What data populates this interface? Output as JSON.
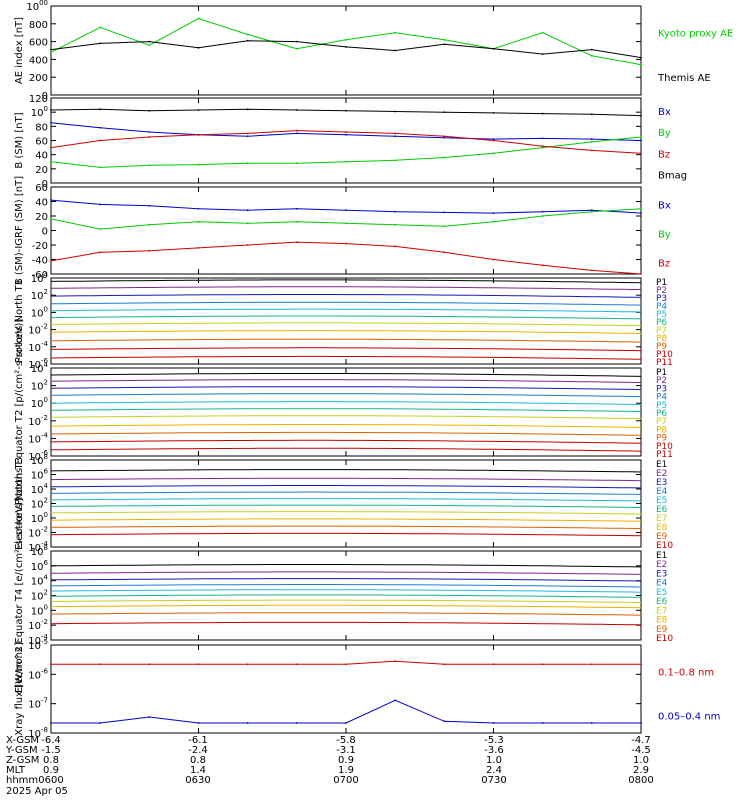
{
  "footer": {
    "labels": [
      "X-GSM",
      "Y-GSM",
      "Z-GSM",
      "MLT",
      "hhmm",
      "2025 Apr 05"
    ],
    "columns": [
      [
        "-6.4",
        "-1.5",
        "0.8",
        "0.9",
        "0600"
      ],
      [
        "-6.1",
        "-2.4",
        "0.8",
        "1.4",
        "0630"
      ],
      [
        "-5.8",
        "-3.1",
        "0.9",
        "1.9",
        "0700"
      ],
      [
        "-5.3",
        "-3.6",
        "1.0",
        "2.4",
        "0730"
      ],
      [
        "-4.7",
        "-4.5",
        "1.0",
        "2.9",
        "0800"
      ]
    ]
  },
  "chart_data": [
    {
      "type": "line",
      "ylabel": "AE index [nT]",
      "ylim": [
        0,
        1000
      ],
      "yticks": [
        "0",
        "200",
        "400",
        "600",
        "800",
        "1000"
      ],
      "x": [
        "0600",
        "0610",
        "0620",
        "0630",
        "0640",
        "0650",
        "0700",
        "0710",
        "0720",
        "0730",
        "0740",
        "0750",
        "0800"
      ],
      "series": [
        {
          "name": "Kyoto proxy AE",
          "color": "#00cc00",
          "values": [
            480,
            760,
            560,
            860,
            680,
            520,
            620,
            700,
            620,
            520,
            700,
            440,
            340
          ]
        },
        {
          "name": "Themis AE",
          "color": "#000000",
          "values": [
            510,
            580,
            600,
            530,
            610,
            600,
            540,
            500,
            570,
            520,
            460,
            510,
            420
          ]
        }
      ]
    },
    {
      "type": "line",
      "ylabel": "B (SM) [nT]",
      "ylim": [
        0,
        120
      ],
      "yticks": [
        "0",
        "20",
        "40",
        "60",
        "80",
        "100",
        "120"
      ],
      "x": [
        "0600",
        "0610",
        "0620",
        "0630",
        "0640",
        "0650",
        "0700",
        "0710",
        "0720",
        "0730",
        "0740",
        "0750",
        "0800"
      ],
      "series": [
        {
          "name": "Bx",
          "color": "#0000cc",
          "values": [
            85,
            78,
            72,
            68,
            66,
            70,
            68,
            66,
            64,
            62,
            63,
            62,
            60
          ]
        },
        {
          "name": "By",
          "color": "#00cc00",
          "values": [
            30,
            22,
            25,
            26,
            28,
            28,
            30,
            32,
            36,
            42,
            50,
            58,
            65
          ]
        },
        {
          "name": "Bz",
          "color": "#cc0000",
          "values": [
            50,
            60,
            65,
            68,
            70,
            74,
            72,
            70,
            66,
            60,
            52,
            46,
            42
          ]
        },
        {
          "name": "Bmag",
          "color": "#000000",
          "values": [
            103,
            104,
            102,
            103,
            104,
            103,
            102,
            101,
            100,
            99,
            98,
            97,
            95
          ]
        }
      ]
    },
    {
      "type": "line",
      "ylabel": "B (SM)-IGRF (SM) [nT]",
      "ylim": [
        -60,
        60
      ],
      "yticks": [
        "-60",
        "-40",
        "-20",
        "0",
        "20",
        "40",
        "60"
      ],
      "x": [
        "0600",
        "0610",
        "0620",
        "0630",
        "0640",
        "0650",
        "0700",
        "0710",
        "0720",
        "0730",
        "0740",
        "0750",
        "0800"
      ],
      "series": [
        {
          "name": "Bx",
          "color": "#0000cc",
          "values": [
            42,
            36,
            34,
            30,
            28,
            30,
            28,
            26,
            25,
            24,
            26,
            28,
            24
          ]
        },
        {
          "name": "By",
          "color": "#00cc00",
          "values": [
            16,
            2,
            8,
            12,
            10,
            12,
            10,
            8,
            6,
            12,
            20,
            26,
            30
          ]
        },
        {
          "name": "Bz",
          "color": "#cc0000",
          "values": [
            -42,
            -30,
            -28,
            -24,
            -20,
            -16,
            -18,
            -22,
            -30,
            -40,
            -48,
            -55,
            -60
          ]
        }
      ]
    },
    {
      "type": "line",
      "ylabel": "Protons North T1",
      "log": true,
      "ylim": [
        1e-06,
        10000
      ],
      "yticks": [
        "10-6",
        "10-4",
        "10-2",
        "100",
        "102",
        "104"
      ],
      "channels": [
        "P1",
        "P2",
        "P3",
        "P4",
        "P5",
        "P6",
        "P7",
        "P8",
        "P9",
        "P10",
        "P11"
      ],
      "levels": [
        3.6,
        2.8,
        1.9,
        1.0,
        0.2,
        -0.6,
        -1.4,
        -2.3,
        -3.3,
        -4.3,
        -5.3
      ],
      "colors": [
        "#000000",
        "#7b2a86",
        "#1a1ab0",
        "#1f7ad0",
        "#22b8d8",
        "#1ab38a",
        "#c8d020",
        "#f0b000",
        "#e06000",
        "#c00000",
        "#c00000"
      ]
    },
    {
      "type": "line",
      "ylabel": "Protons Equator T2 [p/(cm²-s-sr-keV)]",
      "log": true,
      "ylim": [
        1e-06,
        10000
      ],
      "yticks": [
        "10-6",
        "10-4",
        "10-2",
        "100",
        "102",
        "104"
      ],
      "channels": [
        "P1",
        "P2",
        "P3",
        "P4",
        "P5",
        "P6",
        "P7",
        "P8",
        "P9",
        "P10",
        "P11"
      ],
      "levels": [
        3.2,
        2.5,
        1.7,
        0.9,
        0.0,
        -0.8,
        -1.6,
        -2.6,
        -3.5,
        -4.4,
        -5.3
      ],
      "colors": [
        "#000000",
        "#7b2a86",
        "#1a1ab0",
        "#1f7ad0",
        "#22b8d8",
        "#1ab38a",
        "#c8d020",
        "#f0b000",
        "#e06000",
        "#c00000",
        "#c00000"
      ]
    },
    {
      "type": "line",
      "ylabel": "Electrons North T3",
      "log": true,
      "ylim": [
        0.0001,
        100000000.0
      ],
      "yticks": [
        "10-4",
        "10-2",
        "100",
        "102",
        "104",
        "106",
        "108"
      ],
      "channels": [
        "E1",
        "E2",
        "E3",
        "E4",
        "E5",
        "E6",
        "E7",
        "E8",
        "E9",
        "E10"
      ],
      "levels": [
        6.5,
        5.3,
        4.3,
        3.4,
        2.5,
        1.6,
        0.7,
        -0.3,
        -1.3,
        -2.3
      ],
      "colors": [
        "#000000",
        "#7b2a86",
        "#1a1ab0",
        "#1f7ad0",
        "#22b8d8",
        "#1ab38a",
        "#c8d020",
        "#f0b000",
        "#e06000",
        "#c00000"
      ]
    },
    {
      "type": "line",
      "ylabel": "Electrons Equator T4 [e/(cm²-s-sr-keV)]",
      "log": true,
      "ylim": [
        0.0001,
        100000000.0
      ],
      "yticks": [
        "10-4",
        "10-2",
        "100",
        "102",
        "104",
        "106",
        "108"
      ],
      "channels": [
        "E1",
        "E2",
        "E3",
        "E4",
        "E5",
        "E6",
        "E7",
        "E8",
        "E9",
        "E10"
      ],
      "levels": [
        6.0,
        5.0,
        4.1,
        3.3,
        2.6,
        1.9,
        1.2,
        0.5,
        -0.5,
        -1.8
      ],
      "colors": [
        "#000000",
        "#7b2a86",
        "#1a1ab0",
        "#1f7ad0",
        "#22b8d8",
        "#1ab38a",
        "#c8d020",
        "#f0b000",
        "#e06000",
        "#c00000"
      ]
    },
    {
      "type": "line",
      "ylabel": "Xray flux [W/m^2]",
      "log": true,
      "ylim": [
        1e-08,
        1e-05
      ],
      "yticks": [
        "10-8",
        "10-7",
        "10-6",
        "10-5"
      ],
      "x": [
        "0600",
        "0610",
        "0620",
        "0630",
        "0640",
        "0650",
        "0700",
        "0710",
        "0720",
        "0730",
        "0740",
        "0750",
        "0800"
      ],
      "series": [
        {
          "name": "0.1–0.8 nm",
          "color": "#cc0000",
          "values": [
            2.2e-06,
            2.2e-06,
            2.2e-06,
            2.2e-06,
            2.2e-06,
            2.2e-06,
            2.2e-06,
            2.8e-06,
            2.2e-06,
            2.2e-06,
            2.2e-06,
            2.2e-06,
            2.2e-06
          ]
        },
        {
          "name": "0.05–0.4 nm",
          "color": "#0000cc",
          "values": [
            2.2e-08,
            2.2e-08,
            3.5e-08,
            2.2e-08,
            2.2e-08,
            2.2e-08,
            2.2e-08,
            1.3e-07,
            2.5e-08,
            2.2e-08,
            2.2e-08,
            2.2e-08,
            2.2e-08
          ]
        }
      ]
    }
  ]
}
